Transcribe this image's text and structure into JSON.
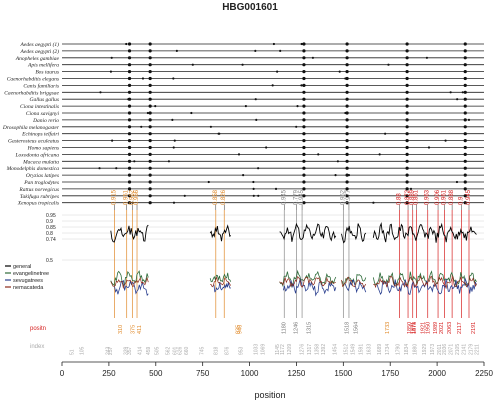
{
  "chart_data": {
    "type": "line",
    "title": "HBG001601",
    "xlabel": "position",
    "xlim": [
      0,
      2250
    ],
    "x_ticks": [
      0,
      250,
      500,
      750,
      1000,
      1250,
      1500,
      1750,
      2000,
      2250
    ],
    "species": [
      "Aedes aegypti (1)",
      "Aedes aegypti (2)",
      "Anopheles gambiae",
      "Apis mellifera",
      "Bos taurus",
      "Caenorhabditis elegans",
      "Canis familiaris",
      "Caenorhabditis briggsae",
      "Gallus gallus",
      "Ciona intestinalis",
      "Ciona savignyi",
      "Danio rerio",
      "Drosophila melanogaster",
      "Echinops telfairi",
      "Gasterosteus aculeatus",
      "Homo sapiens",
      "Loxodonta africana",
      "Macaca mulatta",
      "Monodelphis domestica",
      "Oryzias latipes",
      "Pan troglodytes",
      "Rattus norvegicus",
      "Takifugu rubripes",
      "Xenopus tropicalis"
    ],
    "dot_positions": [
      360,
      470,
      1290,
      1520,
      1840,
      2150
    ],
    "score_ticks": [
      "0.95",
      "0.9",
      "0.85",
      "0.8",
      "0.74"
    ],
    "score_tick_mid": "0.5",
    "legend": [
      "general",
      "evangelinetree",
      "sevugatrees",
      "nemacateda"
    ],
    "series": [
      {
        "name": "general",
        "color": "#000000"
      },
      {
        "name": "evangelinetree",
        "color": "#2e6b3a"
      },
      {
        "name": "sevugatrees",
        "color": "#2a3f8f"
      },
      {
        "name": "nemacateda",
        "color": "#8b2a1a"
      }
    ],
    "segments": [
      [
        260,
        460
      ],
      [
        790,
        900
      ],
      [
        1160,
        1460
      ],
      [
        1490,
        1620
      ],
      [
        1660,
        2210
      ]
    ],
    "peak_labels": [
      {
        "x": 280,
        "text": "0.915"
      },
      {
        "x": 345,
        "text": "0.951"
      },
      {
        "x": 375,
        "text": "0.962"
      },
      {
        "x": 400,
        "text": "0.966"
      },
      {
        "x": 820,
        "text": "0.858"
      },
      {
        "x": 865,
        "text": "0.826"
      },
      {
        "x": 1185,
        "text": "0.945"
      },
      {
        "x": 1250,
        "text": "0.779"
      },
      {
        "x": 1280,
        "text": "0.945"
      },
      {
        "x": 1500,
        "text": "0.962"
      },
      {
        "x": 1530,
        "text": "0.977"
      },
      {
        "x": 1800,
        "text": "0.88"
      },
      {
        "x": 1845,
        "text": "0.872"
      },
      {
        "x": 1870,
        "text": "0.889"
      },
      {
        "x": 1890,
        "text": "0.861"
      },
      {
        "x": 1950,
        "text": "0.963"
      },
      {
        "x": 2005,
        "text": "0.906"
      },
      {
        "x": 2040,
        "text": "0.961"
      },
      {
        "x": 2080,
        "text": "0.888"
      },
      {
        "x": 2130,
        "text": "0.9"
      },
      {
        "x": 2170,
        "text": "0.945"
      }
    ],
    "row_positions_label": "positn",
    "row_indexes_label": "index",
    "position_labels": [
      "310",
      "375",
      "411",
      "935",
      "946",
      "1180",
      "1246",
      "1315",
      "1518",
      "1564",
      "1733",
      "1850",
      "1871",
      "1878",
      "1921",
      "1950",
      "1989",
      "2021",
      "2063",
      "2117",
      "2191"
    ],
    "index_labels": [
      "51",
      "105",
      "243",
      "257",
      "339",
      "357",
      "414",
      "459",
      "505",
      "562",
      "601",
      "626",
      "660",
      "745",
      "818",
      "876",
      "953",
      "1033",
      "1069",
      "1145",
      "1172",
      "1209",
      "1276",
      "1317",
      "1358",
      "1392",
      "1454",
      "1512",
      "1549",
      "1591",
      "1633",
      "1689",
      "1734",
      "1790",
      "1834",
      "1880",
      "1929",
      "1973",
      "2011",
      "2036",
      "2071",
      "2105",
      "2141",
      "2179",
      "2211"
    ]
  }
}
